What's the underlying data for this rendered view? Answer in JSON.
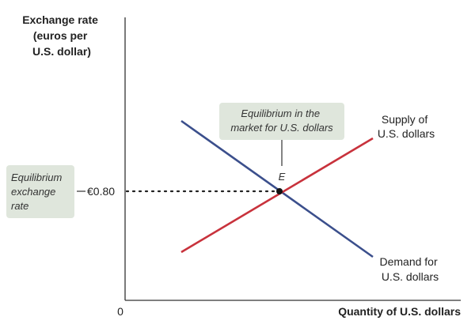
{
  "y_axis_label": [
    "Exchange rate",
    "(euros per",
    "U.S. dollar)"
  ],
  "x_axis_label": "Quantity of U.S. dollars",
  "origin_label": "0",
  "equilibrium_rate_tick": "€0.80",
  "equilibrium_rate_callout": [
    "Equilibrium",
    "exchange",
    "rate"
  ],
  "equilibrium_market_callout": [
    "Equilibrium in the",
    "market for U.S. dollars"
  ],
  "equilibrium_point_label": "E",
  "supply_label": [
    "Supply of",
    "U.S. dollars"
  ],
  "demand_label": [
    "Demand for",
    "U.S. dollars"
  ],
  "colors": {
    "supply_line": "#c8323c",
    "demand_line": "#3b4f8c",
    "callout_fill": "#dfe6dc",
    "axis": "#333333"
  }
}
